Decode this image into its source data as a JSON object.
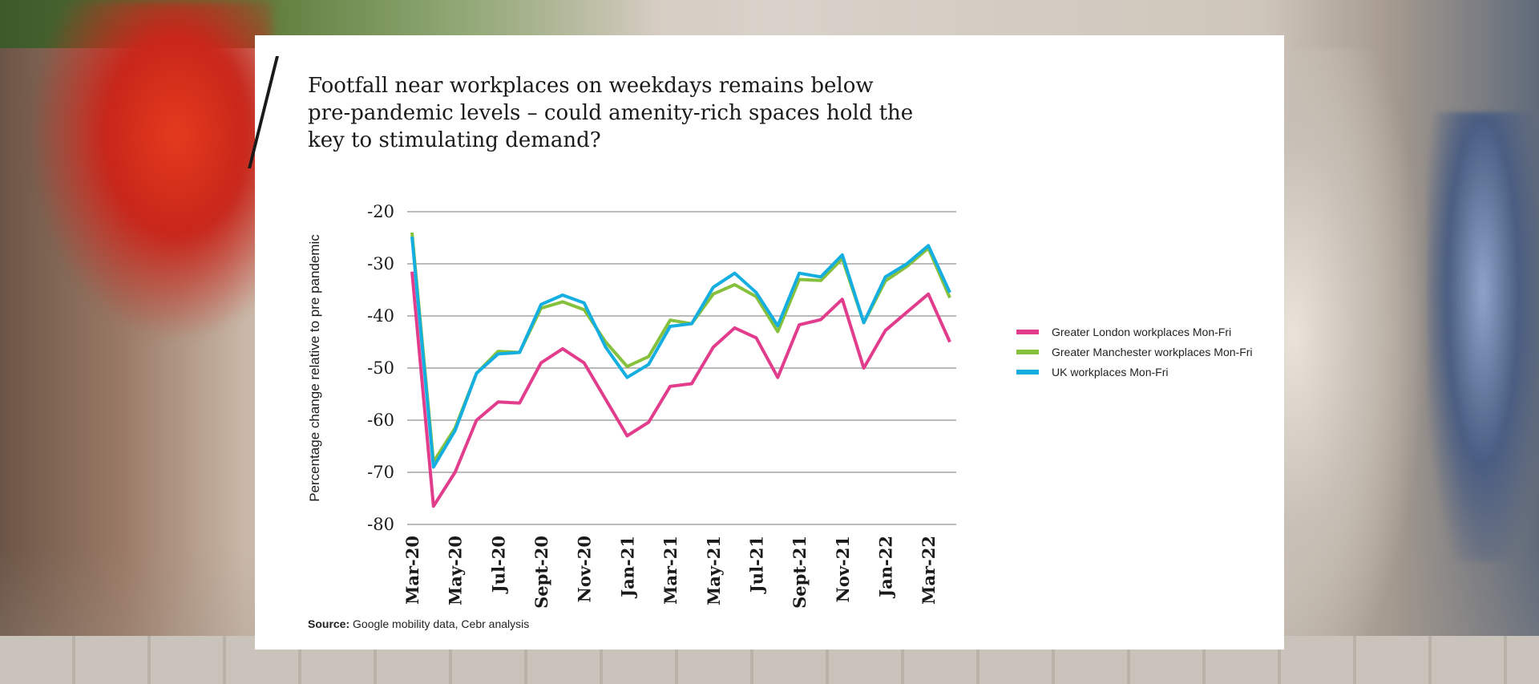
{
  "chart_data": {
    "type": "line",
    "title": "Footfall near workplaces on weekdays remains below pre-pandemic levels – could amenity-rich spaces hold the key to stimulating demand?",
    "ylabel": "Percentage change relative to pre pandemic",
    "xlabel": "",
    "ylim": [
      -80,
      -20
    ],
    "yticks": [
      "-20",
      "-30",
      "-40",
      "-50",
      "-60",
      "-70",
      "-80"
    ],
    "x": [
      "Mar-20",
      "Apr-20",
      "May-20",
      "Jun-20",
      "Jul-20",
      "Aug-20",
      "Sept-20",
      "Oct-20",
      "Nov-20",
      "Dec-20",
      "Jan-21",
      "Feb-21",
      "Mar-21",
      "Apr-21",
      "May-21",
      "Jun-21",
      "Jul-21",
      "Aug-21",
      "Sept-21",
      "Oct-21",
      "Nov-21",
      "Dec-21",
      "Jan-22",
      "Feb-22",
      "Mar-22",
      "Apr-22"
    ],
    "xticks": [
      "Mar-20",
      "May-20",
      "Jul-20",
      "Sept-20",
      "Nov-20",
      "Jan-21",
      "Mar-21",
      "May-21",
      "Jul-21",
      "Sept-21",
      "Nov-21",
      "Jan-22",
      "Mar-22"
    ],
    "grid": true,
    "legend_position": "right",
    "series": [
      {
        "name": "Greater London workplaces Mon-Fri",
        "color": "#e23c8d",
        "values": [
          -31.5,
          -76.5,
          -70,
          -60,
          -56.5,
          -56.7,
          -49,
          -46.3,
          -49,
          -56,
          -63,
          -60.4,
          -53.5,
          -53,
          -46,
          -42.3,
          -44.2,
          -51.8,
          -41.7,
          -40.7,
          -36.8,
          -50,
          -42.8,
          -39.3,
          -35.8,
          -45
        ]
      },
      {
        "name": "Greater Manchester workplaces Mon-Fri",
        "color": "#86c13d",
        "values": [
          -24,
          -68,
          -61.5,
          -51,
          -46.8,
          -47,
          -38.5,
          -37.3,
          -38.8,
          -45,
          -49.7,
          -47.8,
          -40.8,
          -41.5,
          -35.8,
          -34,
          -36.3,
          -43,
          -33,
          -33.2,
          -29,
          -41.3,
          -33.3,
          -30.5,
          -27,
          -36.5
        ]
      },
      {
        "name": "UK workplaces Mon-Fri",
        "color": "#15aee0",
        "values": [
          -24.8,
          -69,
          -62,
          -51,
          -47.3,
          -47,
          -37.8,
          -36,
          -37.5,
          -46,
          -51.8,
          -49.3,
          -42,
          -41.5,
          -34.5,
          -31.8,
          -35.5,
          -41.9,
          -31.8,
          -32.5,
          -28.3,
          -41.3,
          -32.5,
          -30,
          -26.5,
          -35.5
        ]
      }
    ]
  },
  "source": {
    "label": "Source:",
    "text": "Google mobility data, Cebr analysis"
  }
}
